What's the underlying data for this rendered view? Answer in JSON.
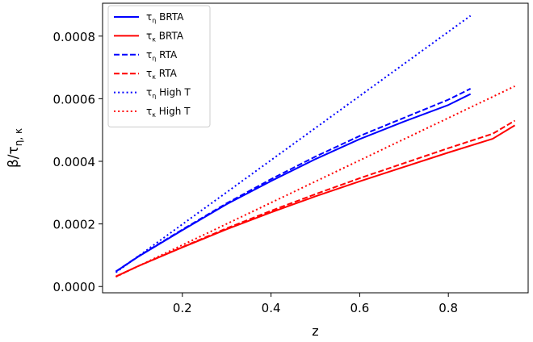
{
  "chart_data": {
    "type": "line",
    "xlabel": "z",
    "ylabel": "β/τ",
    "ylabel_sub": "η, κ",
    "xlim": [
      0.02,
      0.98
    ],
    "ylim": [
      -2e-05,
      0.000905
    ],
    "xticks": [
      0.2,
      0.4,
      0.6,
      0.8
    ],
    "xtick_labels": [
      "0.2",
      "0.4",
      "0.6",
      "0.8"
    ],
    "yticks": [
      0.0,
      0.0002,
      0.0004,
      0.0006,
      0.0008
    ],
    "ytick_labels": [
      "0.0000",
      "0.0002",
      "0.0004",
      "0.0006",
      "0.0008"
    ],
    "grid": false,
    "legend_position": "top-left",
    "series": [
      {
        "name": "τ_η BRTA",
        "sym": "τ",
        "sub": "η",
        "suffix": " BRTA",
        "color": "#0000ff",
        "style": "solid",
        "x": [
          0.05,
          0.1,
          0.2,
          0.3,
          0.4,
          0.5,
          0.6,
          0.7,
          0.8,
          0.85
        ],
        "y": [
          4.8e-05,
          9.5e-05,
          0.00018,
          0.000263,
          0.000337,
          0.000407,
          0.000471,
          0.000527,
          0.00058,
          0.000615
        ]
      },
      {
        "name": "τ_κ BRTA",
        "sym": "τ",
        "sub": "κ",
        "suffix": " BRTA",
        "color": "#ff0000",
        "style": "solid",
        "x": [
          0.05,
          0.1,
          0.2,
          0.3,
          0.4,
          0.5,
          0.6,
          0.7,
          0.8,
          0.9,
          0.95
        ],
        "y": [
          3.2e-05,
          6.5e-05,
          0.000125,
          0.000183,
          0.000237,
          0.000288,
          0.000336,
          0.000382,
          0.000428,
          0.000472,
          0.000515
        ]
      },
      {
        "name": "τ_η RTA",
        "sym": "τ",
        "sub": "η",
        "suffix": " RTA",
        "color": "#0000ff",
        "style": "dashed",
        "x": [
          0.05,
          0.1,
          0.2,
          0.3,
          0.4,
          0.5,
          0.6,
          0.7,
          0.8,
          0.85
        ],
        "y": [
          4.8e-05,
          9.6e-05,
          0.000182,
          0.000266,
          0.000343,
          0.000415,
          0.000481,
          0.000539,
          0.000597,
          0.000632
        ]
      },
      {
        "name": "τ_κ RTA",
        "sym": "τ",
        "sub": "κ",
        "suffix": " RTA",
        "color": "#ff0000",
        "style": "dashed",
        "x": [
          0.05,
          0.1,
          0.2,
          0.3,
          0.4,
          0.5,
          0.6,
          0.7,
          0.8,
          0.9,
          0.95
        ],
        "y": [
          3.2e-05,
          6.5e-05,
          0.000126,
          0.000186,
          0.000242,
          0.000295,
          0.000346,
          0.000394,
          0.000442,
          0.000488,
          0.00053
        ]
      },
      {
        "name": "τ_η High T",
        "sym": "τ",
        "sub": "η",
        "suffix": " High T",
        "color": "#0000ff",
        "style": "dotted",
        "x": [
          0.05,
          0.85
        ],
        "y": [
          4.5e-05,
          0.000865
        ]
      },
      {
        "name": "τ_κ High T",
        "sym": "τ",
        "sub": "κ",
        "suffix": " High T",
        "color": "#ff0000",
        "style": "dotted",
        "x": [
          0.05,
          0.95
        ],
        "y": [
          3.1e-05,
          0.00064
        ]
      }
    ]
  }
}
